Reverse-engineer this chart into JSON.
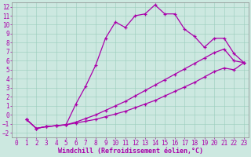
{
  "bg_color": "#cce8e0",
  "grid_color": "#99ccbb",
  "line_color": "#aa00aa",
  "marker": "+",
  "markersize": 3.5,
  "linewidth": 0.9,
  "markeredgewidth": 0.9,
  "xlim": [
    -0.5,
    23.5
  ],
  "ylim": [
    -2.5,
    12.5
  ],
  "xlabel": "Windchill (Refroidissement éolien,°C)",
  "xlabel_fontsize": 6.0,
  "tick_fontsize": 5.5,
  "xticks": [
    0,
    1,
    2,
    3,
    4,
    5,
    6,
    7,
    8,
    9,
    10,
    11,
    12,
    13,
    14,
    15,
    16,
    17,
    18,
    19,
    20,
    21,
    22,
    23
  ],
  "yticks": [
    -2,
    -1,
    0,
    1,
    2,
    3,
    4,
    5,
    6,
    7,
    8,
    9,
    10,
    11,
    12
  ],
  "line1_x": [
    1,
    2,
    3,
    4,
    5,
    6,
    7,
    8,
    9,
    10,
    11,
    12,
    13,
    14,
    15,
    16,
    17,
    18,
    19,
    20,
    21,
    22,
    23
  ],
  "line1_y": [
    -0.5,
    -1.5,
    -1.3,
    -1.2,
    -1.1,
    1.2,
    3.2,
    5.5,
    8.5,
    10.3,
    9.7,
    11.0,
    11.2,
    12.2,
    11.2,
    11.2,
    9.5,
    8.7,
    7.5,
    8.5,
    8.5,
    6.8,
    5.8
  ],
  "line2_x": [
    1,
    2,
    3,
    4,
    5,
    6,
    7,
    8,
    9,
    10,
    11,
    12,
    13,
    14,
    15,
    16,
    17,
    18,
    19,
    20,
    21,
    22,
    23
  ],
  "line2_y": [
    -0.5,
    -1.5,
    -1.3,
    -1.2,
    -1.1,
    -0.8,
    -0.4,
    0.0,
    0.5,
    1.0,
    1.5,
    2.1,
    2.7,
    3.3,
    3.9,
    4.5,
    5.1,
    5.7,
    6.3,
    6.9,
    7.3,
    6.0,
    5.8
  ],
  "line3_x": [
    1,
    2,
    3,
    4,
    5,
    6,
    7,
    8,
    9,
    10,
    11,
    12,
    13,
    14,
    15,
    16,
    17,
    18,
    19,
    20,
    21,
    22,
    23
  ],
  "line3_y": [
    -0.5,
    -1.5,
    -1.3,
    -1.2,
    -1.1,
    -0.9,
    -0.7,
    -0.5,
    -0.2,
    0.1,
    0.4,
    0.8,
    1.2,
    1.6,
    2.1,
    2.6,
    3.1,
    3.6,
    4.2,
    4.8,
    5.2,
    5.0,
    5.8
  ]
}
